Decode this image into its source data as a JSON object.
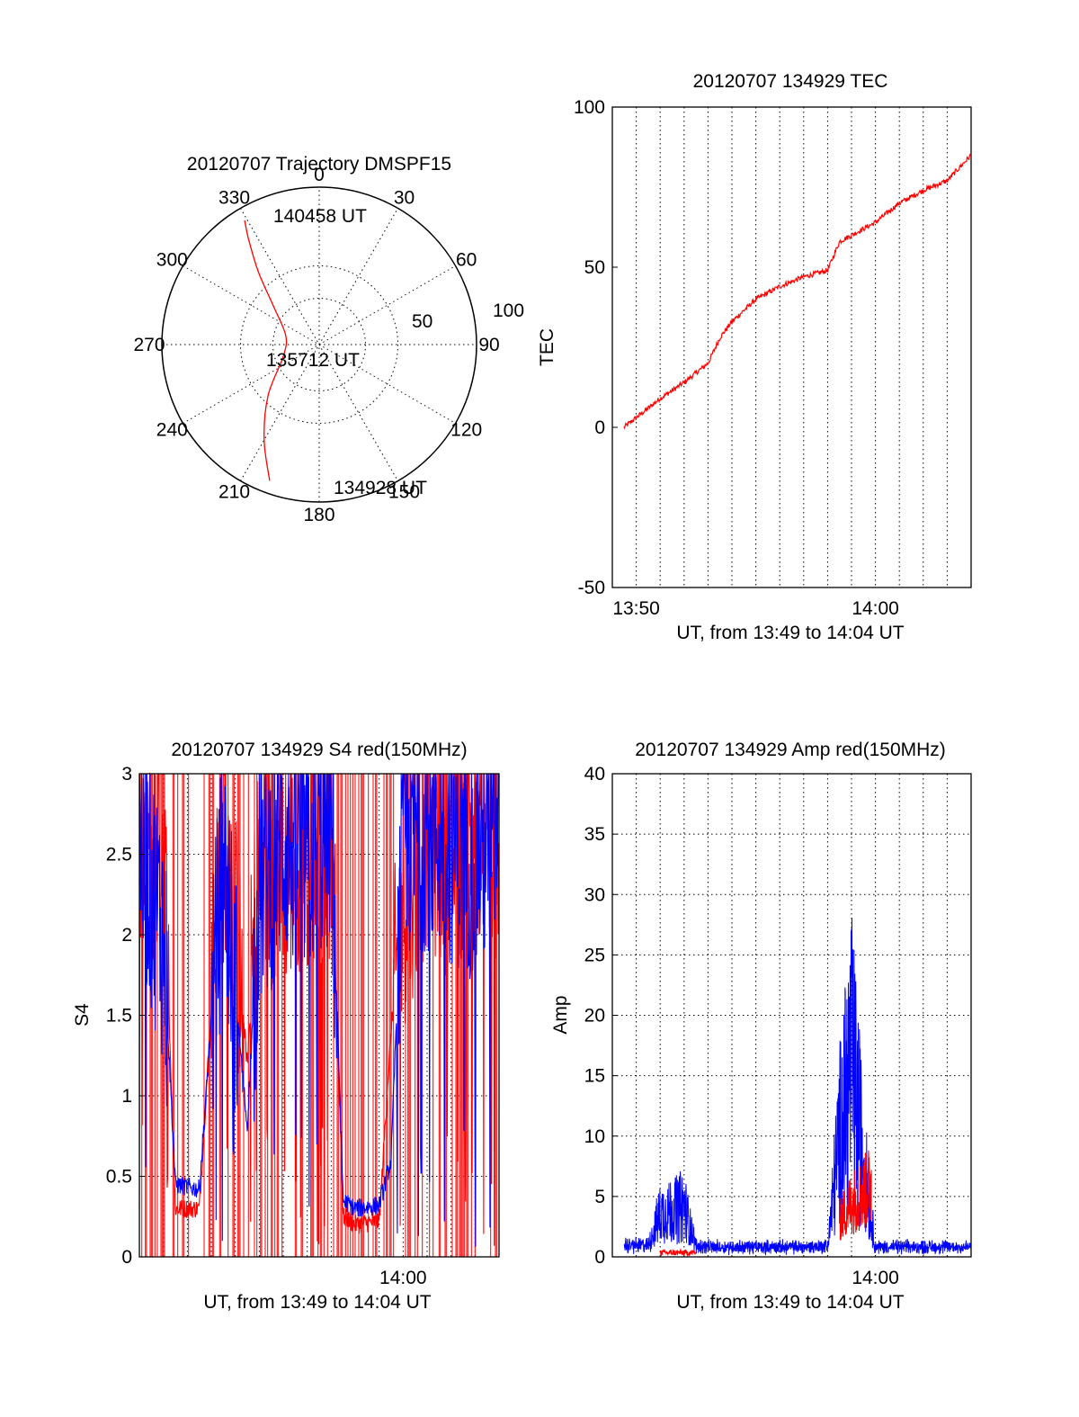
{
  "colors": {
    "red": "#ff0000",
    "blue": "#0000ff",
    "ink": "#000000"
  },
  "chart_data": [
    {
      "id": "trajectory",
      "type": "polar",
      "title": "20120707 Trajectory DMSPF15",
      "angle_labels": [
        "0",
        "30",
        "60",
        "90",
        "120",
        "150",
        "180",
        "210",
        "240",
        "270",
        "300",
        "330"
      ],
      "radius_labels": [
        "50",
        "100"
      ],
      "radius_range": [
        0,
        100
      ],
      "annotations": [
        "140458 UT",
        "135712 UT",
        "134928 UT"
      ],
      "track": [
        {
          "az": 200,
          "r": 92
        },
        {
          "az": 210,
          "r": 70
        },
        {
          "az": 225,
          "r": 46
        },
        {
          "az": 252,
          "r": 24
        },
        {
          "az": 285,
          "r": 22
        },
        {
          "az": 310,
          "r": 38
        },
        {
          "az": 320,
          "r": 60
        },
        {
          "az": 326,
          "r": 80
        },
        {
          "az": 329,
          "r": 92
        }
      ]
    },
    {
      "id": "tec",
      "type": "line",
      "title": "20120707 134929 TEC",
      "xlabel": "UT, from 13:49 to 14:04 UT",
      "ylabel": "TEC",
      "xlim": [
        "13:49",
        "14:04"
      ],
      "ylim": [
        -50,
        100
      ],
      "yticks": [
        "100",
        "50",
        "0",
        "-50"
      ],
      "xticks": [
        "13:50",
        "14:00"
      ],
      "grid": true,
      "series": [
        {
          "color": "red",
          "x": [
            "13:49:29",
            "13:50",
            "13:51",
            "13:52",
            "13:53",
            "13:53:30",
            "13:54",
            "13:55",
            "13:56",
            "13:57",
            "13:58",
            "13:58:30",
            "13:59",
            "14:00",
            "14:01",
            "14:02",
            "14:03",
            "14:04"
          ],
          "y": [
            0,
            3,
            9,
            14,
            20,
            28,
            33,
            40,
            44,
            47,
            49,
            58,
            60,
            64,
            70,
            74,
            77,
            85
          ]
        }
      ]
    },
    {
      "id": "s4",
      "type": "line",
      "title": "20120707 134929 S4 red(150MHz)",
      "xlabel": "UT, from 13:49 to 14:04 UT",
      "ylabel": "S4",
      "xlim": [
        "13:49",
        "14:04"
      ],
      "ylim": [
        0,
        3
      ],
      "yticks": [
        "3",
        "2.5",
        "2",
        "1.5",
        "1",
        "0.5",
        "0"
      ],
      "xticks": [
        "14:00"
      ],
      "grid": true,
      "series": [
        {
          "color": "blue",
          "x": [
            "13:49:00",
            "13:50:00",
            "13:50:30",
            "13:51:30",
            "13:52:30",
            "13:53:30",
            "13:54:00",
            "13:55:00",
            "13:56:00",
            "13:57:00",
            "13:57:30",
            "13:58:00",
            "13:59:00",
            "13:59:30",
            "14:00:00",
            "14:01:00",
            "14:02:00",
            "14:03:00",
            "14:04:00"
          ],
          "y": [
            2.6,
            2.0,
            0.45,
            0.42,
            2.5,
            0.8,
            2.3,
            2.6,
            2.5,
            2.7,
            0.35,
            0.3,
            0.32,
            0.6,
            2.6,
            2.7,
            2.6,
            2.5,
            2.7
          ]
        },
        {
          "color": "red",
          "x": [
            "13:49:00",
            "13:50:00",
            "13:50:30",
            "13:51:30",
            "13:52:30",
            "13:53:30",
            "13:54:00",
            "13:55:00",
            "13:56:00",
            "13:57:00",
            "13:57:30",
            "13:58:00",
            "13:59:00",
            "13:59:30",
            "14:00:00",
            "14:01:00",
            "14:02:00",
            "14:03:00",
            "14:04:00"
          ],
          "y": [
            2.5,
            2.6,
            0.3,
            0.3,
            2.8,
            1.2,
            2.5,
            2.4,
            2.6,
            2.6,
            0.25,
            0.2,
            0.22,
            1.4,
            2.2,
            2.7,
            2.5,
            2.8,
            2.6
          ]
        }
      ]
    },
    {
      "id": "amp",
      "type": "line",
      "title": "20120707 134929 Amp red(150MHz)",
      "xlabel": "UT, from 13:49 to 14:04 UT",
      "ylabel": "Amp",
      "xlim": [
        "13:49",
        "14:04"
      ],
      "ylim": [
        0,
        40
      ],
      "yticks": [
        "40",
        "35",
        "30",
        "25",
        "20",
        "15",
        "10",
        "5",
        "0"
      ],
      "xticks": [
        "14:00"
      ],
      "grid": true,
      "series": [
        {
          "color": "blue",
          "x": [
            "13:49:30",
            "13:50:30",
            "13:51:00",
            "13:52:00",
            "13:52:30",
            "13:53:00",
            "13:55:00",
            "13:57:00",
            "13:58:00",
            "13:58:30",
            "13:59:00",
            "13:59:30",
            "14:00:00",
            "14:01:00",
            "14:02:00",
            "14:03:00",
            "14:04:00"
          ],
          "y": [
            1,
            1,
            5,
            6,
            1,
            0.8,
            0.8,
            0.8,
            0.9,
            15,
            25,
            12,
            0.8,
            0.8,
            0.8,
            0.8,
            0.8
          ]
        },
        {
          "color": "red",
          "x": [
            "13:51:00",
            "13:52:30",
            "13:58:30",
            "13:59:00",
            "13:59:30",
            "13:59:50"
          ],
          "y": [
            0.3,
            0.3,
            4,
            6,
            7,
            8
          ]
        }
      ]
    }
  ]
}
